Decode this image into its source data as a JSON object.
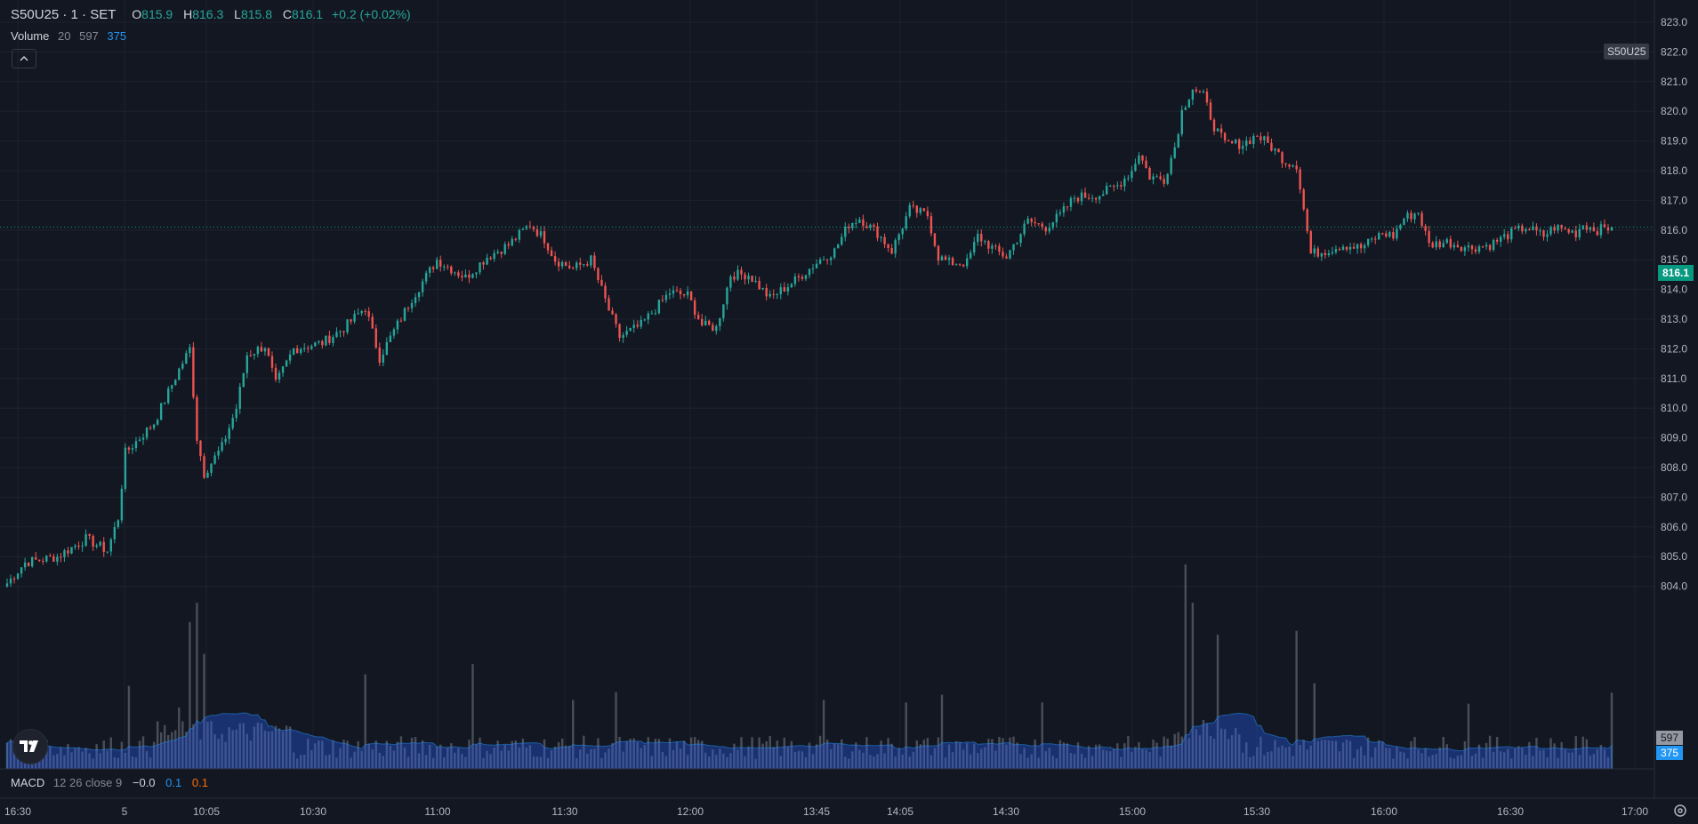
{
  "legend": {
    "symbol": "S50U25 · 1 · SET",
    "open_label": "O",
    "open": "815.9",
    "high_label": "H",
    "high": "816.3",
    "low_label": "L",
    "low": "815.8",
    "close_label": "C",
    "close": "816.1",
    "change": "+0.2 (+0.02%)"
  },
  "volume_legend": {
    "name": "Volume",
    "period": "20",
    "value": "597",
    "ma": "375"
  },
  "macd_legend": {
    "name": "MACD",
    "params": "12 26 close 9",
    "macd": "−0.0",
    "signal": "0.1",
    "hist": "0.1"
  },
  "symbol_tag": "S50U25",
  "current_price_badge": "816.1",
  "volume_badges": {
    "volume": "597",
    "ma": "375"
  },
  "colors": {
    "up": "#26a69a",
    "down": "#ef5350",
    "volume": "#787b86",
    "volume_ma": "#2962ff"
  },
  "chart_data": {
    "type": "candlestick",
    "symbol": "S50U25",
    "interval": "1",
    "y_ticks": [
      "823.0",
      "822.0",
      "821.0",
      "820.0",
      "819.0",
      "818.0",
      "817.0",
      "816.0",
      "815.0",
      "814.0",
      "813.0",
      "812.0",
      "811.0",
      "810.0",
      "809.0",
      "808.0",
      "807.0",
      "806.0",
      "805.0",
      "804.0"
    ],
    "x_ticks": [
      "16:30",
      "5",
      "10:05",
      "10:30",
      "11:00",
      "11:30",
      "12:00",
      "13:45",
      "14:05",
      "14:30",
      "15:00",
      "15:30",
      "16:00",
      "16:30",
      "17:00"
    ],
    "ylim": [
      803.0,
      823.0
    ],
    "price_anchors": [
      [
        0,
        804.1
      ],
      [
        5,
        804.8
      ],
      [
        14,
        805.0
      ],
      [
        22,
        805.6
      ],
      [
        28,
        805.2
      ],
      [
        31,
        806.3
      ],
      [
        33,
        808.5
      ],
      [
        41,
        809.5
      ],
      [
        48,
        811.3
      ],
      [
        51,
        812.0
      ],
      [
        53,
        809.0
      ],
      [
        55,
        807.8
      ],
      [
        60,
        808.7
      ],
      [
        64,
        810.0
      ],
      [
        67,
        811.8
      ],
      [
        72,
        812.1
      ],
      [
        75,
        810.8
      ],
      [
        80,
        812.0
      ],
      [
        88,
        812.2
      ],
      [
        94,
        812.7
      ],
      [
        100,
        813.4
      ],
      [
        104,
        811.7
      ],
      [
        108,
        812.6
      ],
      [
        113,
        813.7
      ],
      [
        120,
        815.0
      ],
      [
        128,
        814.4
      ],
      [
        134,
        815.1
      ],
      [
        140,
        815.5
      ],
      [
        146,
        816.2
      ],
      [
        150,
        815.7
      ],
      [
        153,
        815.0
      ],
      [
        158,
        814.7
      ],
      [
        163,
        815.0
      ],
      [
        168,
        813.3
      ],
      [
        171,
        812.4
      ],
      [
        177,
        812.8
      ],
      [
        185,
        813.9
      ],
      [
        190,
        813.8
      ],
      [
        194,
        812.8
      ],
      [
        198,
        812.7
      ],
      [
        202,
        814.5
      ],
      [
        207,
        814.5
      ],
      [
        213,
        813.7
      ],
      [
        220,
        814.3
      ],
      [
        227,
        815.0
      ],
      [
        231,
        815.3
      ],
      [
        235,
        816.2
      ],
      [
        238,
        816.4
      ],
      [
        243,
        815.9
      ],
      [
        247,
        815.3
      ],
      [
        252,
        816.7
      ],
      [
        257,
        816.5
      ],
      [
        260,
        815.1
      ],
      [
        263,
        814.9
      ],
      [
        268,
        814.9
      ],
      [
        271,
        815.8
      ],
      [
        276,
        815.3
      ],
      [
        279,
        815.1
      ],
      [
        285,
        816.3
      ],
      [
        290,
        816.1
      ],
      [
        294,
        816.5
      ],
      [
        298,
        817.1
      ],
      [
        305,
        817.2
      ],
      [
        310,
        817.5
      ],
      [
        314,
        818.0
      ],
      [
        316,
        818.6
      ],
      [
        319,
        817.8
      ],
      [
        323,
        817.7
      ],
      [
        326,
        818.8
      ],
      [
        328,
        820.0
      ],
      [
        331,
        820.8
      ],
      [
        334,
        820.5
      ],
      [
        337,
        819.5
      ],
      [
        340,
        818.9
      ],
      [
        345,
        818.9
      ],
      [
        349,
        819.2
      ],
      [
        353,
        818.8
      ],
      [
        357,
        818.3
      ],
      [
        360,
        818.2
      ],
      [
        364,
        815.2
      ],
      [
        368,
        815.3
      ],
      [
        373,
        815.5
      ],
      [
        378,
        815.4
      ],
      [
        384,
        815.9
      ],
      [
        387,
        815.8
      ],
      [
        390,
        816.4
      ],
      [
        394,
        816.6
      ],
      [
        397,
        815.5
      ],
      [
        402,
        815.6
      ],
      [
        408,
        815.4
      ],
      [
        414,
        815.5
      ],
      [
        420,
        815.9
      ],
      [
        424,
        816.1
      ],
      [
        429,
        815.8
      ],
      [
        432,
        816.1
      ],
      [
        438,
        815.9
      ],
      [
        440,
        816.2
      ],
      [
        444,
        816.0
      ],
      [
        448,
        816.1
      ]
    ],
    "volume_ylim": [
      0,
      1600
    ],
    "volume_peaks": [
      [
        34,
        650
      ],
      [
        48,
        480
      ],
      [
        51,
        1150
      ],
      [
        53,
        1300
      ],
      [
        55,
        900
      ],
      [
        100,
        740
      ],
      [
        130,
        820
      ],
      [
        158,
        540
      ],
      [
        170,
        600
      ],
      [
        228,
        540
      ],
      [
        251,
        520
      ],
      [
        261,
        580
      ],
      [
        289,
        520
      ],
      [
        329,
        1600
      ],
      [
        331,
        1300
      ],
      [
        338,
        1050
      ],
      [
        360,
        1080
      ],
      [
        365,
        670
      ],
      [
        408,
        510
      ]
    ]
  }
}
